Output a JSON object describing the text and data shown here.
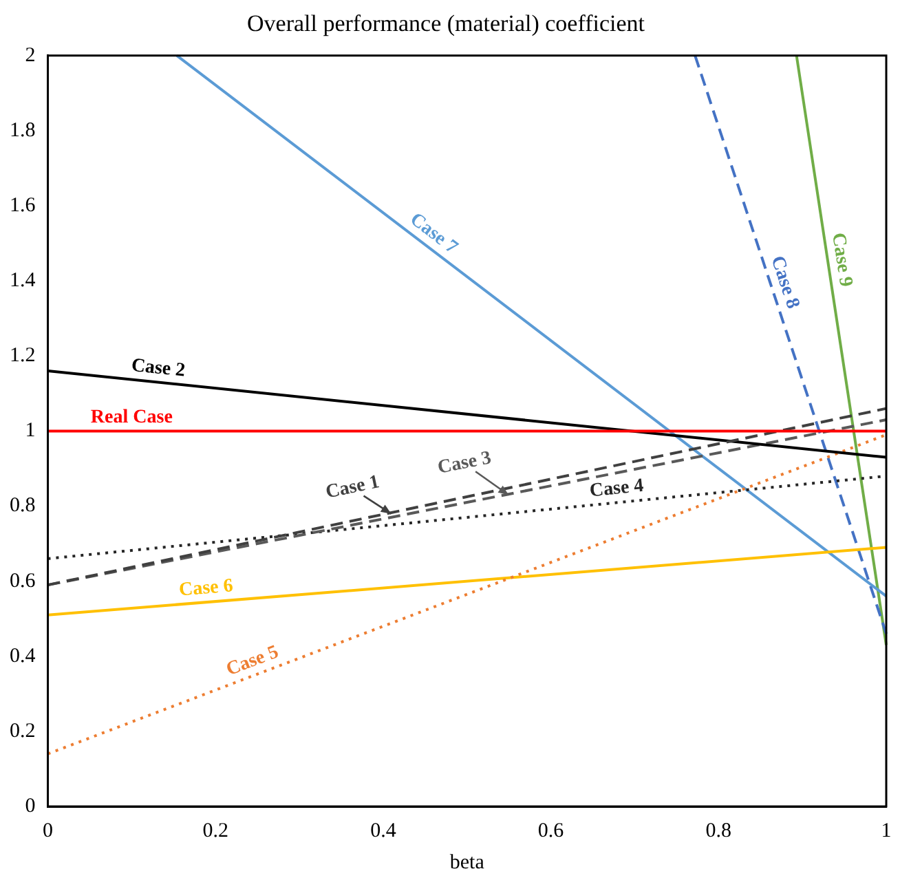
{
  "chart_data": {
    "type": "line",
    "title": "Overall performance (material) coefficient",
    "xlabel": "beta",
    "xlim": [
      0,
      1
    ],
    "xticks": [
      0,
      0.2,
      0.4,
      0.6,
      0.8,
      1
    ],
    "ylim": [
      0,
      2
    ],
    "yticks": [
      0,
      0.2,
      0.4,
      0.6,
      0.8,
      1,
      1.2,
      1.4,
      1.6,
      1.8,
      2
    ],
    "grid": false,
    "legend": false,
    "marker": "none",
    "series": [
      {
        "name": "Real Case",
        "color": "#ff0000",
        "line_style": "solid",
        "x": [
          0,
          1
        ],
        "values": [
          1,
          1
        ]
      },
      {
        "name": "Case 1",
        "color": "#404040",
        "line_style": "dashed",
        "x": [
          0,
          1
        ],
        "values": [
          0.59,
          1.06
        ]
      },
      {
        "name": "Case 2",
        "color": "#000000",
        "line_style": "solid",
        "x": [
          0,
          1
        ],
        "values": [
          1.16,
          0.93
        ]
      },
      {
        "name": "Case 3",
        "color": "#595959",
        "line_style": "dashed",
        "x": [
          0,
          1
        ],
        "values": [
          0.59,
          1.03
        ]
      },
      {
        "name": "Case 4",
        "color": "#262626",
        "line_style": "dotted",
        "x": [
          0,
          1
        ],
        "values": [
          0.66,
          0.88
        ]
      },
      {
        "name": "Case 5",
        "color": "#ed7d31",
        "line_style": "dotted",
        "x": [
          0,
          1
        ],
        "values": [
          0.14,
          0.99
        ]
      },
      {
        "name": "Case 6",
        "color": "#ffc000",
        "line_style": "solid",
        "x": [
          0,
          1
        ],
        "values": [
          0.51,
          0.69
        ]
      },
      {
        "name": "Case 7",
        "color": "#5b9bd5",
        "line_style": "solid",
        "x": [
          0.154,
          1
        ],
        "values": [
          2,
          0.56
        ]
      },
      {
        "name": "Case 8",
        "color": "#4472c4",
        "line_style": "dashed",
        "x": [
          0.772,
          1
        ],
        "values": [
          2,
          0.46
        ]
      },
      {
        "name": "Case 9",
        "color": "#70ad47",
        "line_style": "solid",
        "x": [
          0.893,
          1
        ],
        "values": [
          2,
          0.43
        ]
      }
    ]
  }
}
